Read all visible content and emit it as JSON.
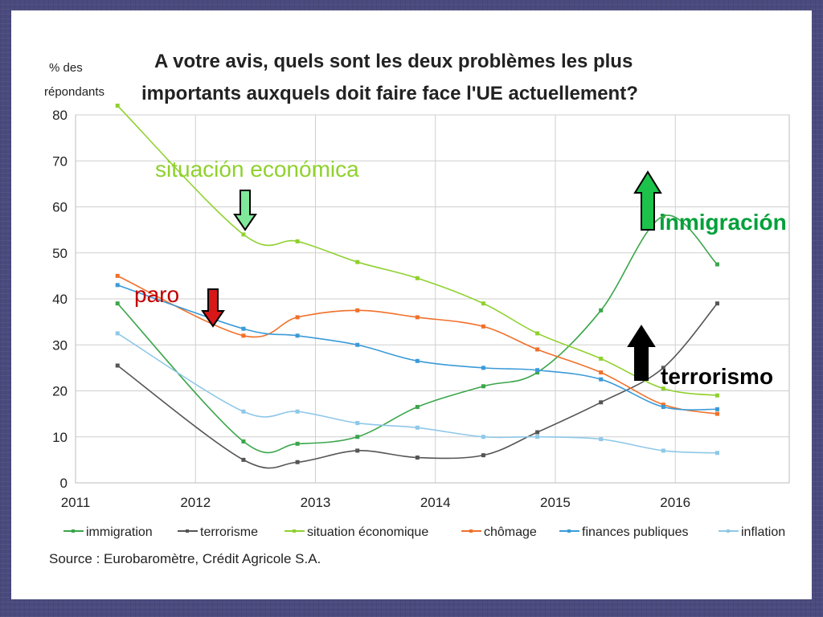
{
  "chart_data": {
    "type": "line",
    "title_lines": [
      "A votre avis, quels sont les deux problèmes les plus",
      "importants auxquels doit faire face l'UE actuellement?"
    ],
    "ylabel_lines": [
      "% des",
      "répondants"
    ],
    "ylim": [
      0,
      80
    ],
    "yticks": [
      0,
      10,
      20,
      30,
      40,
      50,
      60,
      70,
      80
    ],
    "xlim": [
      2011,
      2016.95
    ],
    "xticks": [
      2011,
      2012,
      2013,
      2014,
      2015,
      2016
    ],
    "xtick_labels": [
      "2011",
      "2012",
      "2013",
      "2014",
      "2015",
      "2016"
    ],
    "grid": true,
    "legend_position": "bottom",
    "x": [
      2011.35,
      2012.4,
      2012.85,
      2013.35,
      2013.85,
      2014.4,
      2014.85,
      2015.38,
      2015.9,
      2016.35
    ],
    "series": [
      {
        "name": "immigration",
        "color": "#3aa64a",
        "values": [
          39,
          9,
          8.5,
          10,
          16.5,
          21,
          24,
          37.5,
          58,
          47.5
        ]
      },
      {
        "name": "terrorisme",
        "color": "#555555",
        "values": [
          25.5,
          5,
          4.5,
          7,
          5.5,
          6,
          11,
          17.5,
          25,
          39
        ]
      },
      {
        "name": "situation économique",
        "color": "#8fd12e",
        "values": [
          82,
          54,
          52.5,
          48,
          44.5,
          39,
          32.5,
          27,
          20.5,
          19
        ]
      },
      {
        "name": "chômage",
        "color": "#f0702a",
        "values": [
          45,
          32,
          36,
          37.5,
          36,
          34,
          29,
          24,
          17,
          15
        ]
      },
      {
        "name": "finances publiques",
        "color": "#3a9ad8",
        "values": [
          43,
          33.5,
          32,
          30,
          26.5,
          25,
          24.5,
          22.5,
          16.5,
          16
        ]
      },
      {
        "name": "inflation",
        "color": "#8ec8e8",
        "values": [
          32.5,
          15.5,
          15.5,
          13,
          12,
          10,
          10,
          9.5,
          7,
          6.5
        ]
      }
    ],
    "source": "Source : Eurobaromètre, Crédit Agricole S.A."
  },
  "annotations": [
    {
      "text": "situación económica",
      "color": "#8fd12e",
      "arrow": "down",
      "arrow_color": "#7fe89a"
    },
    {
      "text": "paro",
      "color": "#c00000",
      "arrow": "down",
      "arrow_color": "#d81818"
    },
    {
      "text": "inmigración",
      "color": "#00a03a",
      "arrow": "up",
      "arrow_color": "#1cc24a"
    },
    {
      "text": "terrorismo",
      "color": "#000000",
      "arrow": "up",
      "arrow_color": "#000000"
    }
  ]
}
